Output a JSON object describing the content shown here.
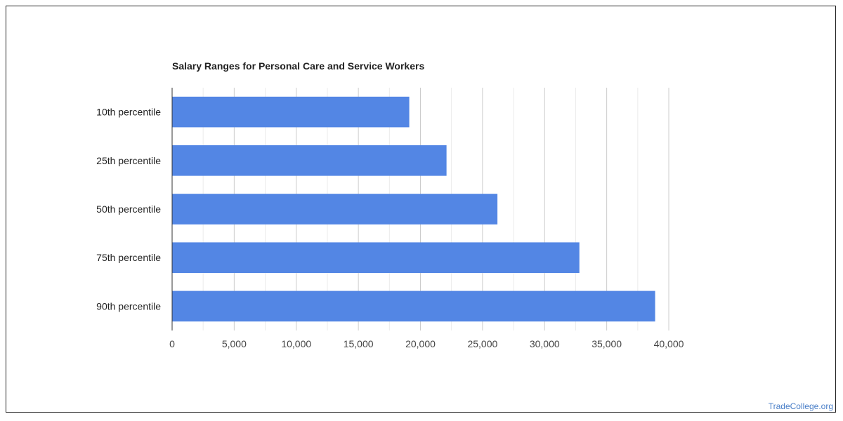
{
  "chart_data": {
    "type": "bar",
    "orientation": "horizontal",
    "title": "Salary Ranges for Personal Care and Service Workers",
    "categories": [
      "10th percentile",
      "25th percentile",
      "50th percentile",
      "75th percentile",
      "90th percentile"
    ],
    "values": [
      19100,
      22100,
      26200,
      32800,
      38900
    ],
    "xlim": [
      0,
      40000
    ],
    "xticks": [
      0,
      5000,
      10000,
      15000,
      20000,
      25000,
      30000,
      35000,
      40000
    ],
    "xtick_labels": [
      "0",
      "5,000",
      "10,000",
      "15,000",
      "20,000",
      "25,000",
      "30,000",
      "35,000",
      "40,000"
    ],
    "bar_color": "#5386e4",
    "grid": true,
    "legend": "none"
  },
  "watermark": "TradeCollege.org"
}
